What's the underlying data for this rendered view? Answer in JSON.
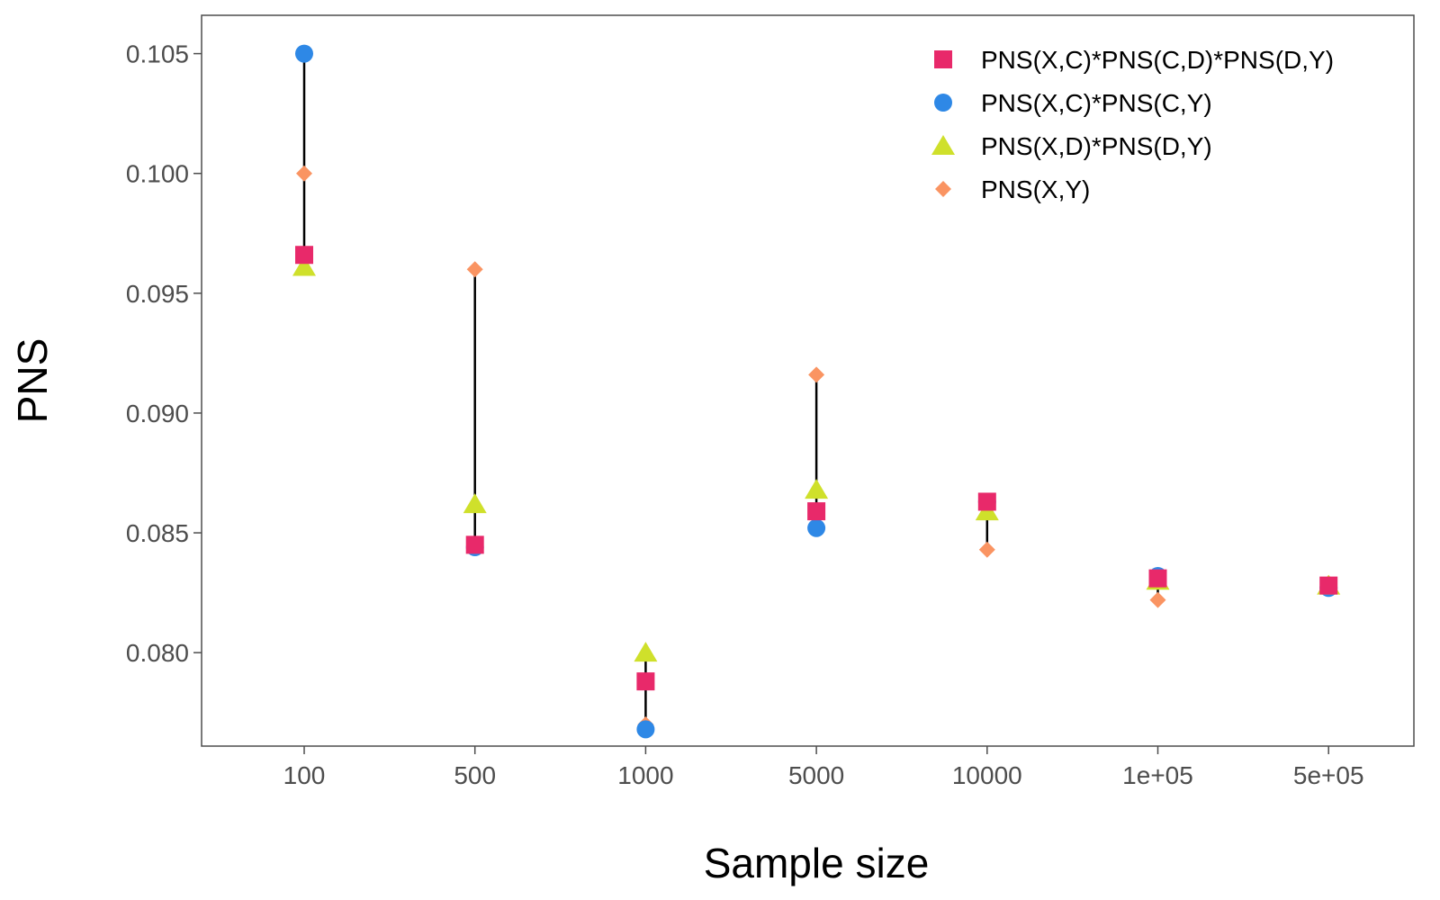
{
  "chart_data": {
    "type": "scatter",
    "title": "",
    "xlabel": "Sample size",
    "ylabel": "PNS",
    "categories": [
      "100",
      "500",
      "1000",
      "5000",
      "10000",
      "1e+05",
      "5e+05"
    ],
    "yticks": [
      "0.080",
      "0.085",
      "0.090",
      "0.095",
      "0.100",
      "0.105"
    ],
    "ylim": [
      0.0761,
      0.1066
    ],
    "grid": false,
    "legend_position": "top-right",
    "series": [
      {
        "name": "PNS(X,C)*PNS(C,D)*PNS(D,Y)",
        "shape": "square",
        "color": "#e8296a",
        "values": [
          0.0966,
          0.0845,
          0.0788,
          0.0859,
          0.0863,
          0.0831,
          0.0828
        ]
      },
      {
        "name": "PNS(X,C)*PNS(C,Y)",
        "shape": "circle",
        "color": "#2e88e6",
        "values": [
          0.105,
          0.0844,
          0.0768,
          0.0852,
          0.0863,
          0.0832,
          0.0827
        ]
      },
      {
        "name": "PNS(X,D)*PNS(D,Y)",
        "shape": "triangle",
        "color": "#cfe02b",
        "values": [
          0.0961,
          0.0862,
          0.08,
          0.0868,
          0.0859,
          0.083,
          0.0828
        ]
      },
      {
        "name": "PNS(X,Y)",
        "shape": "diamond",
        "color": "#fa9462",
        "values": [
          0.1,
          0.096,
          0.077,
          0.0916,
          0.0843,
          0.0822,
          0.0829
        ]
      }
    ],
    "range_line_color": "#000000"
  }
}
